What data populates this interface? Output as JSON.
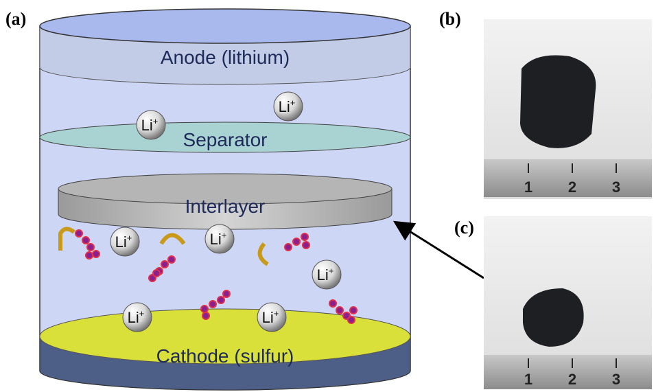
{
  "panels": {
    "a": "(a)",
    "b": "(b)",
    "c": "(c)"
  },
  "layers": {
    "anode": "Anode (lithium)",
    "separator": "Separator",
    "interlayer": "Interlayer",
    "cathode": "Cathode (sulfur)"
  },
  "ions": [
    {
      "symbol": "Li",
      "charge": "+"
    },
    {
      "symbol": "Li",
      "charge": "+"
    },
    {
      "symbol": "Li",
      "charge": "+"
    },
    {
      "symbol": "Li",
      "charge": "+"
    },
    {
      "symbol": "Li",
      "charge": "+"
    },
    {
      "symbol": "Li",
      "charge": "+"
    },
    {
      "symbol": "Li",
      "charge": "+"
    }
  ],
  "rulers": {
    "b": [
      1,
      2,
      3
    ],
    "c": [
      1,
      2,
      3
    ]
  }
}
